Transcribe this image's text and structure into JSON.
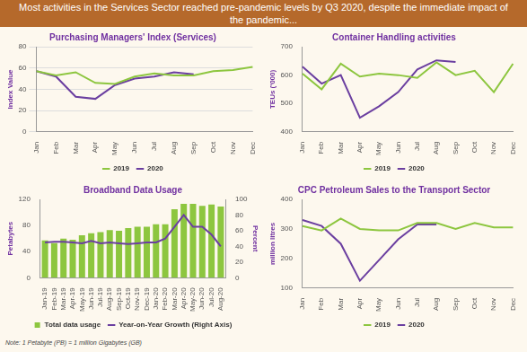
{
  "title": "Most activities in the Services Sector reached pre-pandemic levels by Q3 2020, despite the immediate impact of the pandemic...",
  "note": "Note: 1 Petabyte (PB) = 1 million Gigabytes (GB)",
  "chart_data": [
    {
      "type": "line",
      "title": "Purchasing Managers' Index (Services)",
      "y_label": "Index Value",
      "categories": [
        "Jan",
        "Feb",
        "Mar",
        "Apr",
        "May",
        "Jun",
        "Jul",
        "Aug",
        "Sep",
        "Oct",
        "Nov",
        "Dec"
      ],
      "series": [
        {
          "name": "2019",
          "color": "#8dc63f",
          "values": [
            57,
            53,
            56,
            46,
            45,
            52,
            55,
            53,
            53,
            57,
            58,
            61
          ]
        },
        {
          "name": "2020",
          "color": "#6b3fa0",
          "values": [
            57,
            52,
            33,
            31,
            44,
            50,
            52,
            56,
            54,
            null,
            null,
            null
          ]
        }
      ],
      "ylim": [
        0,
        80
      ],
      "yticks": [
        0,
        20,
        40,
        60,
        80
      ],
      "grid": true,
      "legend": "bottom"
    },
    {
      "type": "line",
      "title": "Container Handling activities",
      "y_label": "TEUs ('000)",
      "categories": [
        "Jan",
        "Feb",
        "Mar",
        "Apr",
        "May",
        "Jun",
        "Jul",
        "Aug",
        "Sep",
        "Oct",
        "Nov",
        "Dec"
      ],
      "series": [
        {
          "name": "2019",
          "color": "#8dc63f",
          "values": [
            605,
            550,
            640,
            595,
            605,
            600,
            590,
            645,
            600,
            615,
            540,
            640
          ]
        },
        {
          "name": "2020",
          "color": "#6b3fa0",
          "values": [
            630,
            570,
            600,
            450,
            490,
            540,
            620,
            652,
            646,
            null,
            null,
            null
          ]
        }
      ],
      "ylim": [
        400,
        700
      ],
      "yticks": [
        400,
        500,
        600,
        700
      ],
      "grid": false,
      "legend": "bottom"
    },
    {
      "type": "bar",
      "title": "Broadband Data Usage",
      "y_label": "Petabytes",
      "y2_label": "Percent",
      "categories": [
        "Jan-19",
        "Feb-19",
        "Mar-19",
        "Apr-19",
        "May-19",
        "Jun-19",
        "Jul-19",
        "Aug-19",
        "Sep-19",
        "Oct-19",
        "Nov-19",
        "Dec-19",
        "Jan-20",
        "Feb-20",
        "Mar-20",
        "Apr-20",
        "May-20",
        "Jun-20",
        "Jul-20",
        "Aug-20"
      ],
      "series": [
        {
          "name": "Total data usage",
          "type": "bar",
          "color": "#8dc63f",
          "values": [
            57,
            53,
            60,
            58,
            65,
            68,
            70,
            73,
            72,
            76,
            78,
            78,
            82,
            82,
            105,
            113,
            113,
            110,
            112,
            109
          ]
        },
        {
          "name": "Year-on-Year Growth (Right Axis)",
          "type": "line",
          "axis": "y2",
          "color": "#6b3fa0",
          "values": [
            45,
            46,
            46,
            45,
            44,
            47,
            44,
            45,
            44,
            43,
            44,
            45,
            45,
            50,
            65,
            80,
            65,
            65,
            55,
            40
          ]
        }
      ],
      "ylim": [
        0,
        120
      ],
      "yticks": [
        0,
        40,
        80,
        120
      ],
      "y2lim": [
        0,
        100
      ],
      "y2ticks": [
        0,
        20,
        40,
        60,
        80,
        100
      ],
      "grid": false,
      "legend": "bottom"
    },
    {
      "type": "line",
      "title": "CPC Petroleum Sales to the Transport Sector",
      "y_label": "million litres",
      "categories": [
        "Jan",
        "Feb",
        "Mar",
        "Apr",
        "May",
        "Jun",
        "Jul",
        "Aug",
        "Sep",
        "Oct",
        "Nov",
        "Dec"
      ],
      "series": [
        {
          "name": "2019",
          "color": "#8dc63f",
          "values": [
            310,
            295,
            335,
            300,
            295,
            295,
            320,
            320,
            300,
            320,
            305,
            305
          ]
        },
        {
          "name": "2020",
          "color": "#6b3fa0",
          "values": [
            330,
            310,
            250,
            125,
            195,
            265,
            315,
            315,
            null,
            null,
            null,
            null
          ]
        }
      ],
      "ylim": [
        100,
        400
      ],
      "yticks": [
        100,
        200,
        300,
        400
      ],
      "grid": false,
      "legend": "bottom"
    }
  ]
}
